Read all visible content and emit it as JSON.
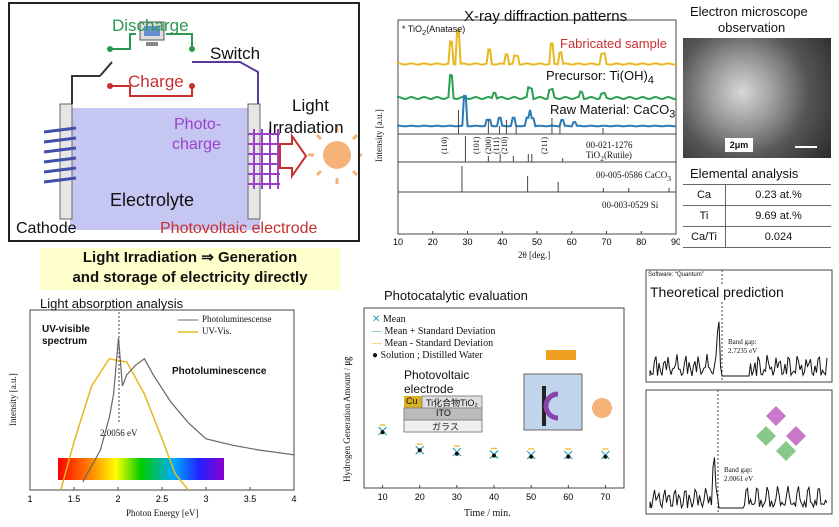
{
  "cell": {
    "discharge": "Discharge",
    "charge": "Charge",
    "switch": "Switch",
    "light_irradiation_1": "Light",
    "light_irradiation_2": "Irradiation",
    "photocharge_1": "Photo-",
    "photocharge_2": "charge",
    "electrolyte": "Electrolyte",
    "cathode": "Cathode",
    "photovoltaic_electrode": "Photovoltaic electrode"
  },
  "caption": {
    "line1": "Light Irradiation ⇒ Generation",
    "line2": "and storage of electricity directly"
  },
  "xrd": {
    "title": "X-ray diffraction patterns",
    "anatase_marker": "* TiO",
    "anatase_sub": "2",
    "anatase_tail": "(Anatase)",
    "fabricated": "Fabricated sample",
    "precursor": "Precursor: Ti(OH)",
    "precursor_sub": "4",
    "raw": "Raw Material: CaCO",
    "raw_sub": "3",
    "ref1": "00-021-1276 TiO",
    "ref1_sub": "2",
    "ref1_tail": "(Rutile)",
    "ref2": "00-005-0586 CaCO",
    "ref2_sub": "3",
    "ref3": "00-003-0529 Si",
    "ylabel": "Intensity [a.u.]",
    "xlabel": "2θ [deg.]",
    "hkl": [
      "(110)",
      "(101)",
      "(200)",
      "(111)",
      "(210)",
      "(211)"
    ],
    "xticks": [
      "10",
      "20",
      "30",
      "40",
      "50",
      "60",
      "70",
      "80",
      "90"
    ],
    "colors": {
      "fabricated": "#e8b820",
      "precursor": "#2aa050",
      "raw": "#2a7ab8"
    }
  },
  "sem": {
    "title_1": "Electron microscope",
    "title_2": "observation",
    "scale": "2μm"
  },
  "elemental": {
    "title": "Elemental analysis",
    "rows": [
      {
        "label": "Ca",
        "value": "0.23 at.%"
      },
      {
        "label": "Ti",
        "value": "9.69 at.%"
      },
      {
        "label": "Ca/Ti",
        "value": "0.024"
      }
    ]
  },
  "absorption": {
    "title": "Light absorption analysis",
    "legend_pl": "Photoluminescense",
    "legend_uv": "UV-Vis.",
    "uv_label_1": "UV-visible",
    "uv_label_2": "spectrum",
    "pl_label": "Photoluminescence",
    "peak": "2.0056 eV",
    "ylabel": "Intensity [a.u.]",
    "xlabel": "Photon Energy [eV]",
    "xticks": [
      "1",
      "1.5",
      "2",
      "2.5",
      "3",
      "3.5",
      "4"
    ]
  },
  "photocat": {
    "title": "Photocatalytic evaluation",
    "legend": [
      "Mean",
      "Mean + Standard Deviation",
      "Mean - Standard Deviation",
      "Solution ; Distilled Water"
    ],
    "electrode_1": "Photovoltaic",
    "electrode_2": "electrode",
    "layer_cu": "Cu",
    "layer_tio2": "Ti化合物TiO₂",
    "layer_ito": "ITO",
    "layer_glass": "ガラス",
    "ylabel": "Hydrogen Generation Amount / ㎍",
    "xlabel": "Time / min.",
    "xticks": [
      "10",
      "20",
      "30",
      "40",
      "50",
      "60",
      "70"
    ]
  },
  "theory": {
    "title": "Theoretical prediction",
    "software": "Software: “Quantum”",
    "gap1": "Band gap:",
    "gap1_val": "2.7235 eV",
    "gap2": "Band gap:",
    "gap2_val": "2.0061 eV"
  },
  "chart_data": [
    {
      "type": "line",
      "title": "Light absorption analysis",
      "xlabel": "Photon Energy [eV]",
      "ylabel": "Intensity [a.u.]",
      "xlim": [
        1,
        4
      ],
      "series": [
        {
          "name": "Photoluminescense",
          "x": [
            1.6,
            1.8,
            1.9,
            1.95,
            2.0056,
            2.05,
            2.1,
            2.2,
            2.3,
            2.4,
            2.6,
            2.8,
            3.0,
            3.3,
            3.6,
            4.0
          ],
          "y": [
            0.05,
            0.25,
            0.45,
            0.6,
            0.95,
            0.65,
            0.72,
            0.78,
            0.82,
            0.72,
            0.55,
            0.42,
            0.32,
            0.28,
            0.25,
            0.22
          ]
        },
        {
          "name": "UV-Vis.",
          "x": [
            1.35,
            1.5,
            1.7,
            1.9,
            2.1,
            2.3,
            2.5,
            2.65,
            2.8
          ],
          "y": [
            0.0,
            0.3,
            0.65,
            0.82,
            0.8,
            0.6,
            0.32,
            0.1,
            0.0
          ]
        }
      ],
      "annotations": [
        "2.0056 eV"
      ]
    },
    {
      "type": "scatter",
      "title": "Photocatalytic evaluation",
      "xlabel": "Time / min.",
      "ylabel": "Hydrogen Generation Amount / ㎍",
      "x": [
        10,
        20,
        30,
        40,
        50,
        60,
        70
      ],
      "series": [
        {
          "name": "Mean",
          "values": [
            95,
            63,
            60,
            56,
            55,
            55,
            55
          ]
        },
        {
          "name": "Solution ; Distilled Water",
          "values": [
            93,
            63,
            57,
            54,
            52,
            52,
            52
          ]
        }
      ]
    }
  ]
}
